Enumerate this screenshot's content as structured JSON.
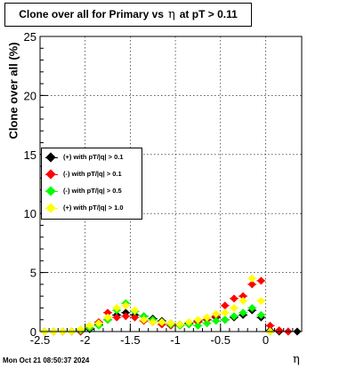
{
  "title": {
    "prefix": "Clone  over all for Primary vs",
    "symbol": "η",
    "suffix": "at pT > 0.11"
  },
  "timestamp": "Mon Oct 21 08:50:37 2024",
  "chart_data": {
    "type": "scatter",
    "xlabel": "η",
    "ylabel": "Clone  over all (%)",
    "xlim": [
      -2.5,
      0.4
    ],
    "ylim": [
      0,
      25
    ],
    "x_ticks": [
      "-2.5",
      "-2",
      "-1.5",
      "-1",
      "-0.5",
      "0"
    ],
    "y_ticks": [
      "0",
      "5",
      "10",
      "15",
      "20",
      "25"
    ],
    "grid": true,
    "legend_placement": "middle-left",
    "series": [
      {
        "name": "(+) with pT/|q| > 0.1",
        "color": "#000000",
        "points": [
          [
            -2.45,
            0
          ],
          [
            -2.35,
            0
          ],
          [
            -2.25,
            0
          ],
          [
            -2.15,
            0
          ],
          [
            -2.05,
            0
          ],
          [
            -1.95,
            0.2
          ],
          [
            -1.85,
            0.6
          ],
          [
            -1.75,
            1.0
          ],
          [
            -1.65,
            1.4
          ],
          [
            -1.55,
            1.6
          ],
          [
            -1.45,
            1.4
          ],
          [
            -1.35,
            1.3
          ],
          [
            -1.25,
            1.1
          ],
          [
            -1.15,
            0.9
          ],
          [
            -1.05,
            0.7
          ],
          [
            -0.95,
            0.6
          ],
          [
            -0.85,
            0.7
          ],
          [
            -0.75,
            0.9
          ],
          [
            -0.65,
            1.0
          ],
          [
            -0.55,
            1.2
          ],
          [
            -0.45,
            1.0
          ],
          [
            -0.35,
            1.2
          ],
          [
            -0.25,
            1.4
          ],
          [
            -0.15,
            1.8
          ],
          [
            -0.05,
            1.2
          ],
          [
            0.05,
            0.1
          ],
          [
            0.15,
            0.0
          ],
          [
            0.25,
            0.0
          ],
          [
            0.35,
            0.0
          ]
        ]
      },
      {
        "name": "(-) with pT/|q| > 0.1",
        "color": "#ff0000",
        "points": [
          [
            -2.45,
            0
          ],
          [
            -2.35,
            0
          ],
          [
            -2.25,
            0
          ],
          [
            -2.15,
            0
          ],
          [
            -2.05,
            0
          ],
          [
            -1.95,
            0.3
          ],
          [
            -1.85,
            0.8
          ],
          [
            -1.75,
            1.6
          ],
          [
            -1.65,
            1.2
          ],
          [
            -1.55,
            1.3
          ],
          [
            -1.45,
            1.2
          ],
          [
            -1.35,
            0.9
          ],
          [
            -1.25,
            0.8
          ],
          [
            -1.15,
            0.6
          ],
          [
            -1.05,
            0.5
          ],
          [
            -0.95,
            0.5
          ],
          [
            -0.85,
            0.6
          ],
          [
            -0.75,
            0.8
          ],
          [
            -0.65,
            1.0
          ],
          [
            -0.55,
            1.3
          ],
          [
            -0.45,
            2.2
          ],
          [
            -0.35,
            2.8
          ],
          [
            -0.25,
            3.0
          ],
          [
            -0.15,
            4.0
          ],
          [
            -0.05,
            4.3
          ],
          [
            0.05,
            0.5
          ],
          [
            0.15,
            0.1
          ],
          [
            0.25,
            0.0
          ]
        ]
      },
      {
        "name": "(-) with pT/|q| > 0.5",
        "color": "#00ff00",
        "points": [
          [
            -2.45,
            0
          ],
          [
            -2.35,
            0
          ],
          [
            -2.25,
            0
          ],
          [
            -2.15,
            0
          ],
          [
            -2.05,
            0.1
          ],
          [
            -1.95,
            0.3
          ],
          [
            -1.85,
            0.5
          ],
          [
            -1.75,
            1.0
          ],
          [
            -1.65,
            1.8
          ],
          [
            -1.55,
            2.4
          ],
          [
            -1.45,
            1.7
          ],
          [
            -1.35,
            1.3
          ],
          [
            -1.25,
            1.0
          ],
          [
            -1.15,
            0.8
          ],
          [
            -1.05,
            0.6
          ],
          [
            -0.95,
            0.5
          ],
          [
            -0.85,
            0.6
          ],
          [
            -0.75,
            0.5
          ],
          [
            -0.65,
            0.7
          ],
          [
            -0.55,
            0.9
          ],
          [
            -0.45,
            1.0
          ],
          [
            -0.35,
            1.3
          ],
          [
            -0.25,
            1.6
          ],
          [
            -0.15,
            2.0
          ],
          [
            -0.05,
            1.4
          ],
          [
            0.05,
            0.0
          ]
        ]
      },
      {
        "name": "(+) with pT/|q| > 1.0",
        "color": "#ffff00",
        "points": [
          [
            -2.45,
            0
          ],
          [
            -2.35,
            0
          ],
          [
            -2.25,
            0
          ],
          [
            -2.15,
            0
          ],
          [
            -2.05,
            0.2
          ],
          [
            -1.95,
            0.5
          ],
          [
            -1.85,
            0.7
          ],
          [
            -1.75,
            1.2
          ],
          [
            -1.65,
            2.0
          ],
          [
            -1.55,
            2.2
          ],
          [
            -1.45,
            1.8
          ],
          [
            -1.35,
            1.0
          ],
          [
            -1.25,
            0.8
          ],
          [
            -1.15,
            0.8
          ],
          [
            -1.05,
            0.7
          ],
          [
            -0.95,
            0.6
          ],
          [
            -0.85,
            0.8
          ],
          [
            -0.75,
            1.0
          ],
          [
            -0.65,
            1.2
          ],
          [
            -0.55,
            1.5
          ],
          [
            -0.45,
            1.6
          ],
          [
            -0.35,
            2.0
          ],
          [
            -0.25,
            2.6
          ],
          [
            -0.15,
            4.5
          ],
          [
            -0.05,
            2.6
          ],
          [
            0.05,
            0.0
          ]
        ]
      }
    ]
  }
}
